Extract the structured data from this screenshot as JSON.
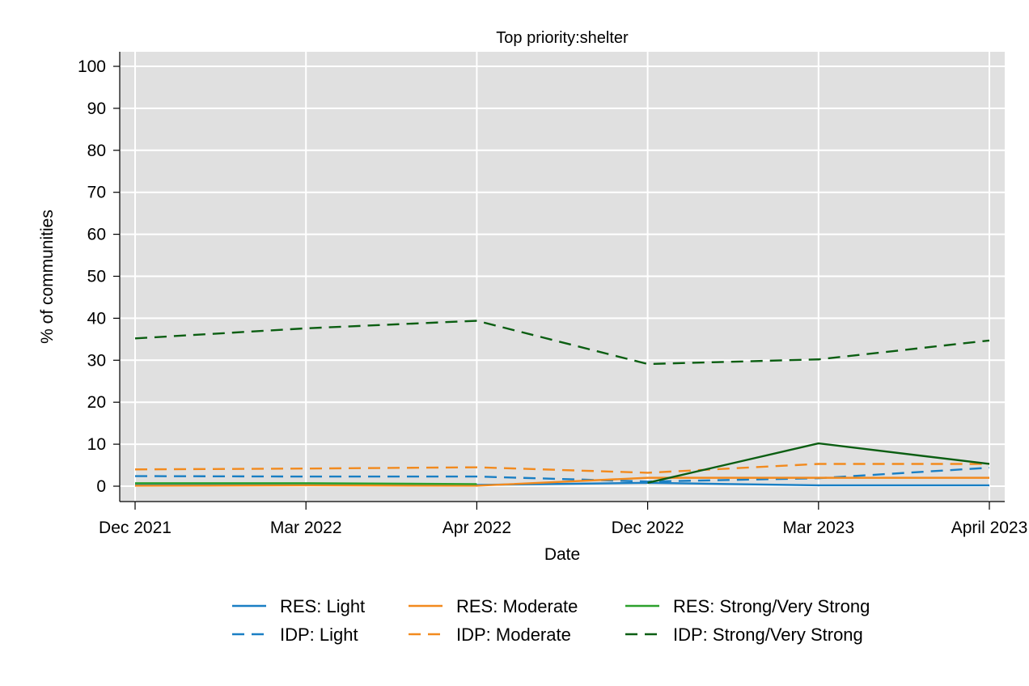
{
  "chart_data": {
    "type": "line",
    "title": "Top priority:shelter",
    "xlabel": "Date",
    "ylabel": "% of communities",
    "categories": [
      "Dec 2021",
      "Mar 2022",
      "Apr 2022",
      "Dec 2022",
      "Mar 2023",
      "April 2023"
    ],
    "ylim": [
      0,
      100
    ],
    "yticks": [
      0,
      10,
      20,
      30,
      40,
      50,
      60,
      70,
      80,
      90,
      100
    ],
    "grid": true,
    "legend_position": "bottom",
    "series": [
      {
        "name": "RES: Light",
        "color": "#1a7fc4",
        "dash": "solid",
        "values": [
          0.3,
          0.3,
          0.3,
          0.8,
          0.2,
          0.2
        ]
      },
      {
        "name": "IDP: Light",
        "color": "#1a7fc4",
        "dash": "dashed",
        "values": [
          2.4,
          2.3,
          2.3,
          1.1,
          1.9,
          4.4
        ]
      },
      {
        "name": "RES: Moderate",
        "color": "#f28a1e",
        "dash": "solid",
        "values": [
          0.1,
          0.2,
          0.1,
          2.0,
          2.0,
          2.0
        ]
      },
      {
        "name": "IDP: Moderate",
        "color": "#f28a1e",
        "dash": "dashed",
        "values": [
          4.0,
          4.2,
          4.5,
          3.2,
          5.3,
          5.3
        ]
      },
      {
        "name": "RES: Strong/Very Strong",
        "color": "#2ca02c",
        "dash": "solid",
        "values": [
          0.7,
          0.7,
          0.5,
          null,
          null,
          null
        ]
      },
      {
        "name": "IDP: Strong/Very Strong",
        "color": "#0b5e12",
        "dash": "dashed",
        "values": [
          35.2,
          37.6,
          39.4,
          29.1,
          30.2,
          34.7
        ]
      },
      {
        "name": "",
        "color": "#0b5e12",
        "dash": "solid",
        "legend": false,
        "values": [
          null,
          null,
          null,
          0.8,
          10.2,
          5.3
        ]
      }
    ]
  }
}
